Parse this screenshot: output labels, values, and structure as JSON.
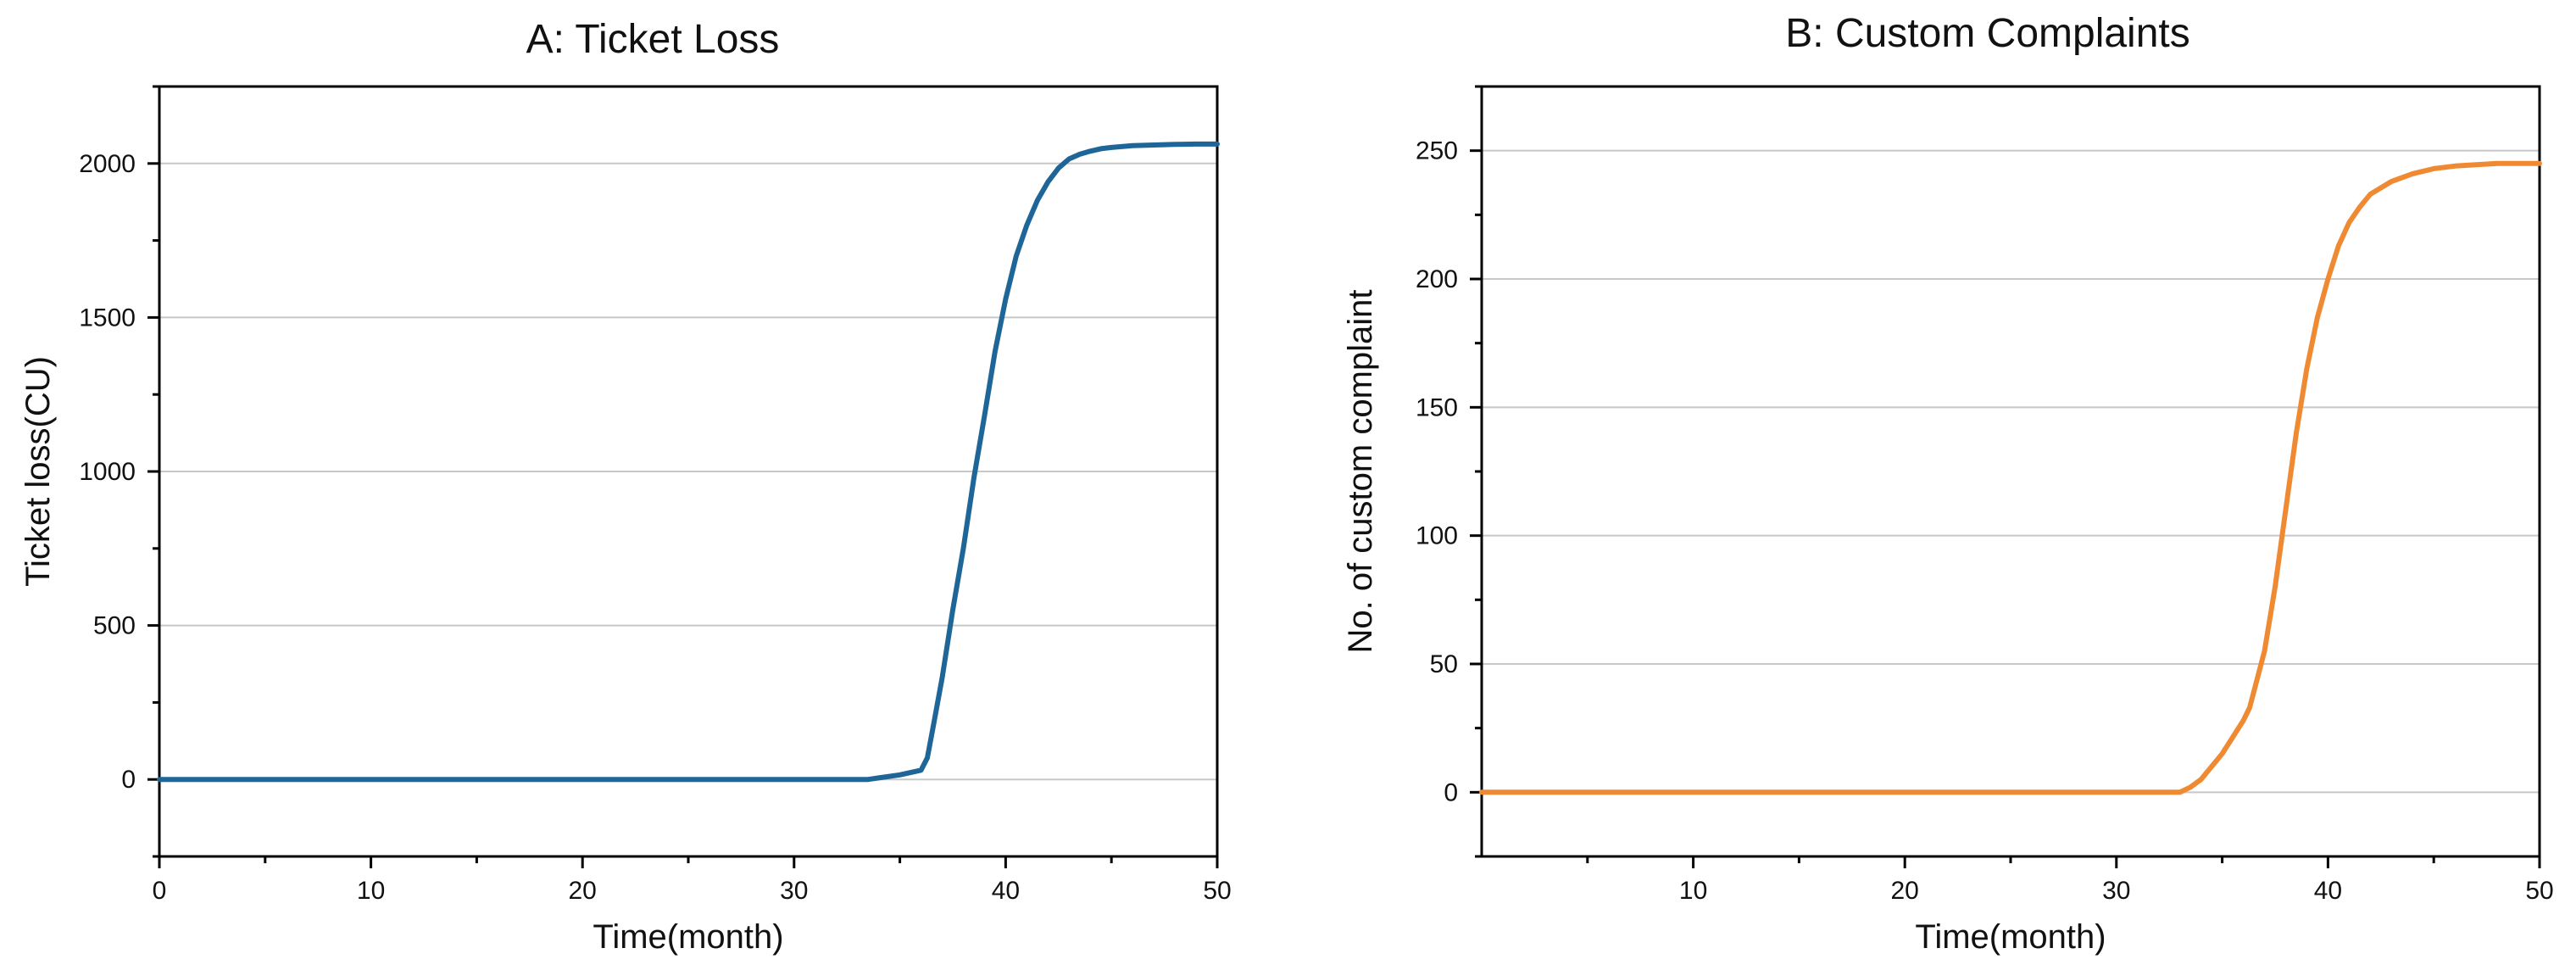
{
  "chart_data": [
    {
      "type": "line",
      "title": "A: Ticket Loss",
      "xlabel": "Time(month)",
      "ylabel": "Ticket loss(CU)",
      "xlim": [
        0,
        50
      ],
      "ylim": [
        -250,
        2250
      ],
      "xticks": [
        0,
        10,
        20,
        30,
        40,
        50
      ],
      "xtick_labels": [
        "0",
        "10",
        "20",
        "30",
        "40",
        "50"
      ],
      "yticks": [
        0,
        500,
        1000,
        1500,
        2000
      ],
      "ytick_labels": [
        "0",
        "500",
        "1000",
        "1500",
        "2000"
      ],
      "grid": "horizontal",
      "color": "#1f6698",
      "series": [
        {
          "x": [
            0,
            10,
            20,
            30,
            33.5,
            34,
            35,
            36,
            36.3,
            36.6,
            37,
            37.5,
            38,
            38.5,
            39,
            39.5,
            40,
            40.5,
            41,
            41.5,
            42,
            42.5,
            43,
            43.5,
            44,
            44.5,
            45,
            46,
            47,
            48,
            49,
            50
          ],
          "y": [
            0,
            0,
            0,
            0,
            0,
            5,
            15,
            30,
            70,
            180,
            330,
            550,
            750,
            980,
            1180,
            1390,
            1560,
            1700,
            1800,
            1880,
            1940,
            1985,
            2015,
            2030,
            2040,
            2048,
            2052,
            2058,
            2060,
            2062,
            2063,
            2063
          ]
        }
      ]
    },
    {
      "type": "line",
      "title": "B: Custom Complaints",
      "xlabel": "Time(month)",
      "ylabel": "No. of custom complaint",
      "xlim": [
        0,
        50
      ],
      "ylim": [
        -25,
        275
      ],
      "xticks": [
        10,
        20,
        30,
        40,
        50
      ],
      "xtick_labels": [
        "10",
        "20",
        "30",
        "40",
        "50"
      ],
      "yticks": [
        0,
        50,
        100,
        150,
        200,
        250
      ],
      "ytick_labels": [
        "0",
        "50",
        "100",
        "150",
        "200",
        "250"
      ],
      "grid": "horizontal",
      "color": "#ef8a33",
      "series": [
        {
          "x": [
            0,
            10,
            20,
            30,
            33,
            33.5,
            34,
            35,
            36,
            36.3,
            37,
            37.5,
            38,
            38.5,
            39,
            39.5,
            40,
            40.5,
            41,
            41.5,
            42,
            43,
            44,
            45,
            46,
            47,
            48,
            49,
            50
          ],
          "y": [
            0,
            0,
            0,
            0,
            0,
            2,
            5,
            15,
            28,
            33,
            55,
            80,
            110,
            140,
            165,
            185,
            200,
            213,
            222,
            228,
            233,
            238,
            241,
            243,
            244,
            244.5,
            245,
            245,
            245
          ]
        }
      ]
    }
  ]
}
